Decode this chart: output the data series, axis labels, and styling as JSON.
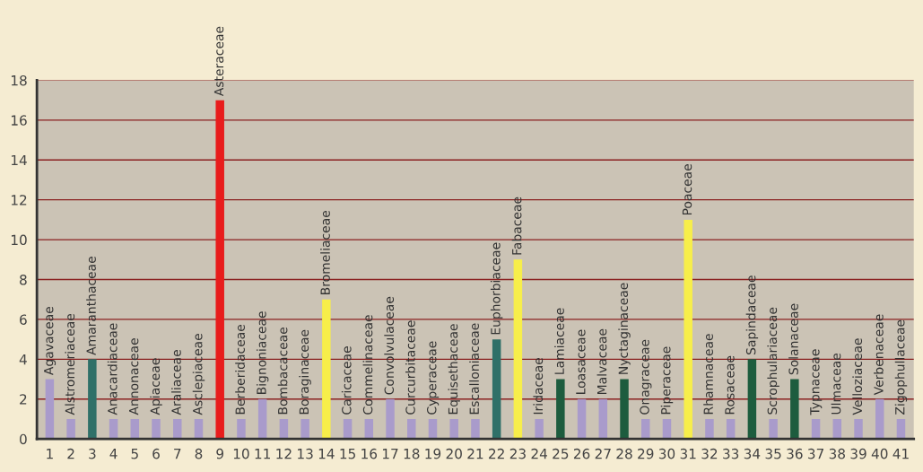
{
  "chart_data": {
    "type": "bar",
    "categories": [
      "1",
      "2",
      "3",
      "4",
      "5",
      "6",
      "7",
      "8",
      "9",
      "10",
      "11",
      "12",
      "13",
      "14",
      "15",
      "16",
      "17",
      "18",
      "19",
      "20",
      "21",
      "22",
      "23",
      "24",
      "25",
      "26",
      "27",
      "28",
      "29",
      "30",
      "31",
      "32",
      "33",
      "34",
      "35",
      "36",
      "37",
      "38",
      "39",
      "40",
      "41"
    ],
    "values": [
      3,
      1,
      4,
      1,
      1,
      1,
      1,
      1,
      17,
      1,
      2,
      1,
      1,
      7,
      1,
      1,
      2,
      1,
      1,
      1,
      1,
      5,
      9,
      1,
      3,
      2,
      2,
      3,
      1,
      1,
      11,
      1,
      1,
      4,
      1,
      3,
      1,
      1,
      1,
      2,
      1
    ],
    "colors": [
      "#a99bcb",
      "#a99bcb",
      "#2f7068",
      "#a99bcb",
      "#a99bcb",
      "#a99bcb",
      "#a99bcb",
      "#a99bcb",
      "#e81c1c",
      "#a99bcb",
      "#a99bcb",
      "#a99bcb",
      "#a99bcb",
      "#f7ee4a",
      "#a99bcb",
      "#a99bcb",
      "#a99bcb",
      "#a99bcb",
      "#a99bcb",
      "#a99bcb",
      "#a99bcb",
      "#2f7068",
      "#f7ee4a",
      "#a99bcb",
      "#1d5c3e",
      "#a99bcb",
      "#a99bcb",
      "#1d5c3e",
      "#a99bcb",
      "#a99bcb",
      "#f7ee4a",
      "#a99bcb",
      "#a99bcb",
      "#1d5c3e",
      "#a99bcb",
      "#1d5c3e",
      "#a99bcb",
      "#a99bcb",
      "#a99bcb",
      "#a99bcb",
      "#a99bcb"
    ],
    "ylim": [
      0,
      18
    ],
    "yticks": [
      0,
      2,
      4,
      6,
      8,
      10,
      12,
      14,
      16,
      18
    ],
    "grid": "y",
    "annotations": [
      {
        "text": "Agavaceae",
        "x": "1",
        "y": 3
      },
      {
        "text": "Alstromeriaceae",
        "x": "2",
        "y": 1
      },
      {
        "text": "Amaranthaceae",
        "x": "3",
        "y": 4
      },
      {
        "text": "Anacardiaceae",
        "x": "4",
        "y": 1
      },
      {
        "text": "Annonaceae",
        "x": "5",
        "y": 1
      },
      {
        "text": "Apiaceae",
        "x": "6",
        "y": 1
      },
      {
        "text": "Araliaceae",
        "x": "7",
        "y": 1
      },
      {
        "text": "Asclepiaceae",
        "x": "8",
        "y": 1
      },
      {
        "text": "Asteraceae",
        "x": "9",
        "y": 17
      },
      {
        "text": "Berberidaceae",
        "x": "10",
        "y": 1
      },
      {
        "text": "Bignoniaceae",
        "x": "11",
        "y": 2
      },
      {
        "text": "Bombacaceae",
        "x": "12",
        "y": 1
      },
      {
        "text": "Boraginaceae",
        "x": "13",
        "y": 1
      },
      {
        "text": "Bromeliaceae",
        "x": "14",
        "y": 7
      },
      {
        "text": "Caricaceae",
        "x": "15",
        "y": 1
      },
      {
        "text": "Commelinaceae",
        "x": "16",
        "y": 1
      },
      {
        "text": "Convolvulaceae",
        "x": "17",
        "y": 2
      },
      {
        "text": "Curcurbitaceae",
        "x": "18",
        "y": 1
      },
      {
        "text": "Cyperaceae",
        "x": "19",
        "y": 1
      },
      {
        "text": "Equisethaceae",
        "x": "20",
        "y": 1
      },
      {
        "text": "Escalloniaceae",
        "x": "21",
        "y": 1
      },
      {
        "text": "Euphorbiaceae",
        "x": "22",
        "y": 5
      },
      {
        "text": "Fabaceae",
        "x": "23",
        "y": 9
      },
      {
        "text": "Iridaceae",
        "x": "24",
        "y": 1
      },
      {
        "text": "Lamiaceae",
        "x": "25",
        "y": 3
      },
      {
        "text": "Loasaceae",
        "x": "26",
        "y": 2
      },
      {
        "text": "Malvaceae",
        "x": "27",
        "y": 2
      },
      {
        "text": "Nyctaginaceae",
        "x": "28",
        "y": 3
      },
      {
        "text": "Onagraceae",
        "x": "29",
        "y": 1
      },
      {
        "text": "Piperaceae",
        "x": "30",
        "y": 1
      },
      {
        "text": "Poaceae",
        "x": "31",
        "y": 11
      },
      {
        "text": "Rhamnaceae",
        "x": "32",
        "y": 1
      },
      {
        "text": "Rosaceae",
        "x": "33",
        "y": 1
      },
      {
        "text": "Sapindaceae",
        "x": "34",
        "y": 4
      },
      {
        "text": "Scrophulariaceae",
        "x": "35",
        "y": 1
      },
      {
        "text": "Solanaceae",
        "x": "36",
        "y": 3
      },
      {
        "text": "Typnaceae",
        "x": "37",
        "y": 1
      },
      {
        "text": "Ulmaceae",
        "x": "38",
        "y": 1
      },
      {
        "text": "Velloziaceae",
        "x": "39",
        "y": 1
      },
      {
        "text": "Verbenaceae",
        "x": "40",
        "y": 2
      },
      {
        "text": "Zigophullaceae",
        "x": "41",
        "y": 1
      }
    ]
  }
}
